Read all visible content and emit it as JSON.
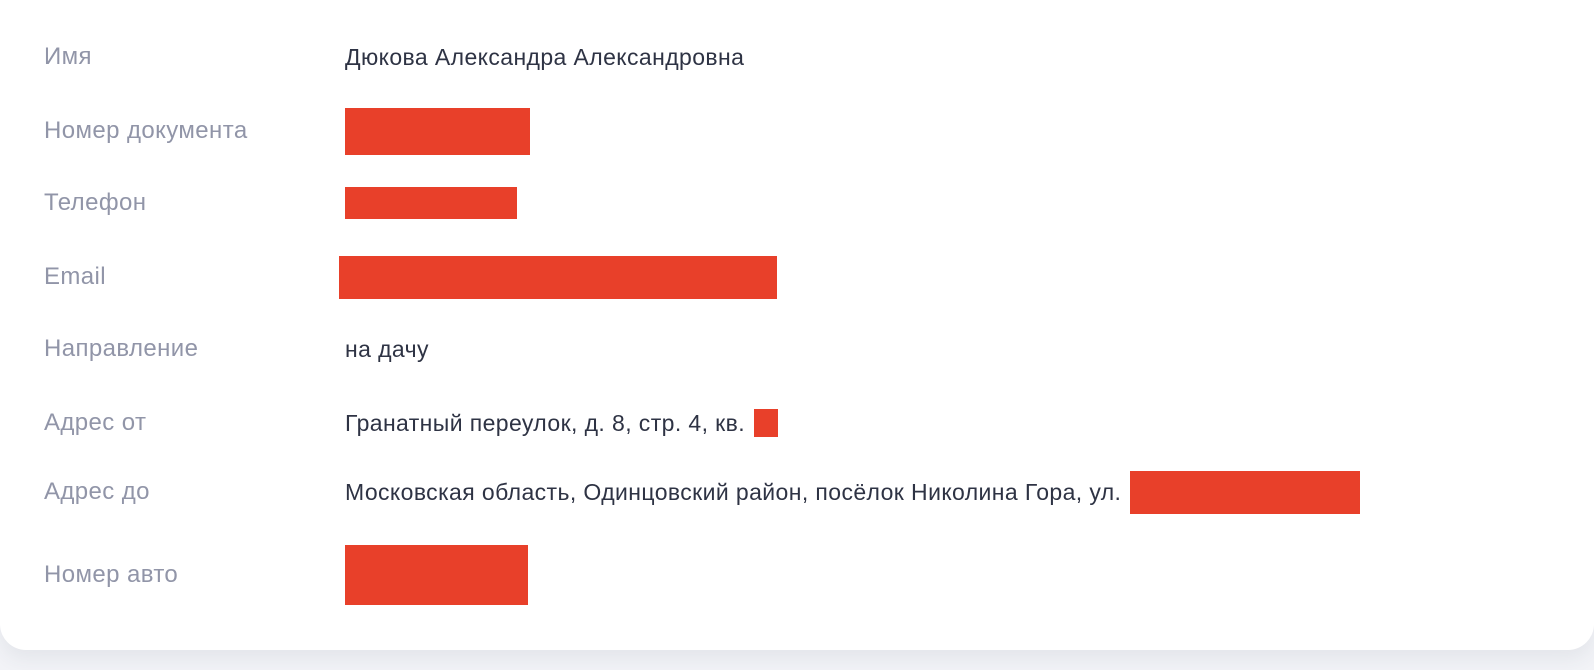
{
  "colors": {
    "redaction": "#e8402a",
    "label_text": "#9195a8",
    "value_text": "#2e3344",
    "card_background": "#ffffff",
    "page_background": "#f2f3f7"
  },
  "fields": [
    {
      "label": "Имя",
      "value": "Дюкова Александра Александровна",
      "redacted": false
    },
    {
      "label": "Номер документа",
      "value": "",
      "redacted": true
    },
    {
      "label": "Телефон",
      "value": "",
      "redacted": true
    },
    {
      "label": "Email",
      "value": "",
      "redacted": true
    },
    {
      "label": "Направление",
      "value": "на дачу",
      "redacted": false
    },
    {
      "label": "Адрес от",
      "value": "Гранатный переулок, д. 8, стр. 4, кв.",
      "redacted": false,
      "redacted_suffix": true
    },
    {
      "label": "Адрес до",
      "value": "Московская область, Одинцовский район, посёлок Николина Гора, ул.",
      "redacted": false,
      "redacted_suffix": true
    },
    {
      "label": "Номер авто",
      "value": "",
      "redacted": true
    }
  ]
}
